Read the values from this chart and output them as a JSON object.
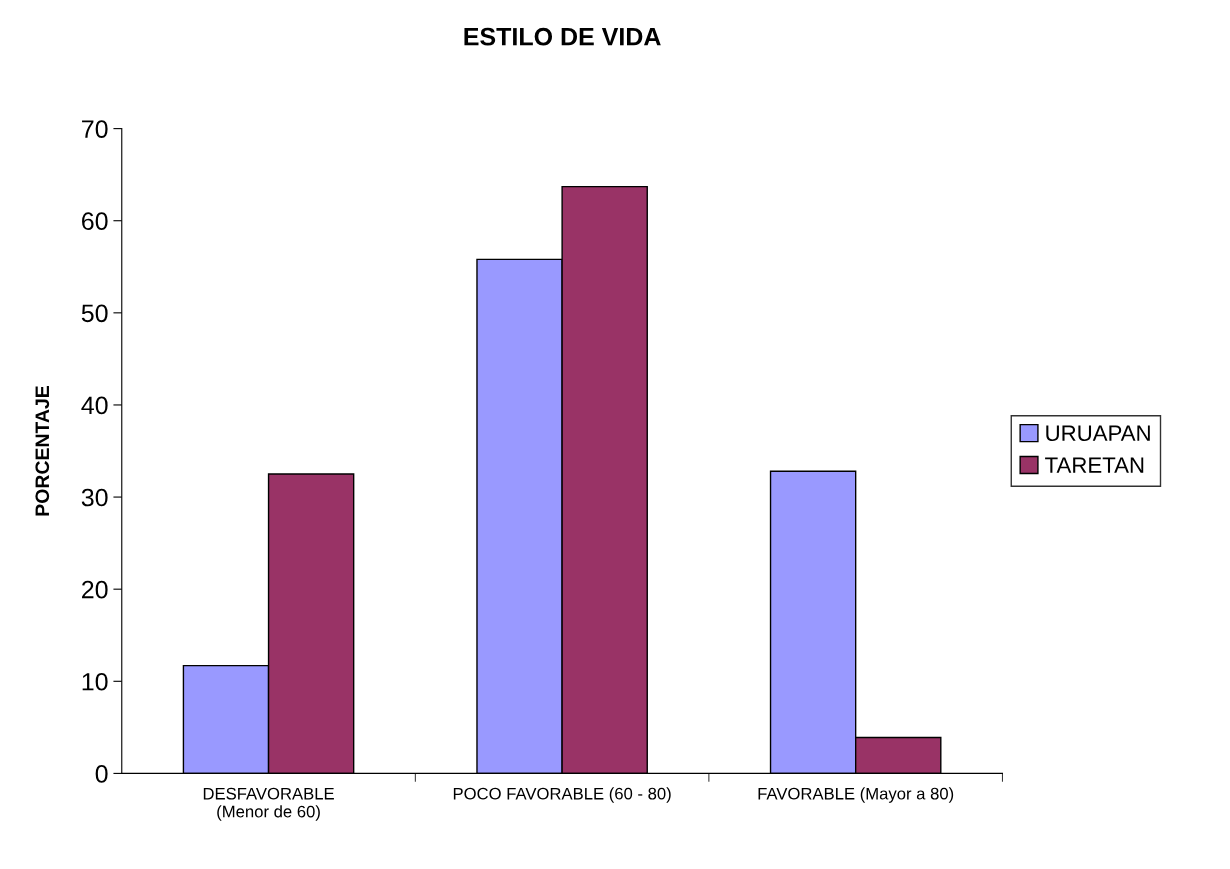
{
  "chart_data": {
    "type": "bar",
    "title": "ESTILO DE VIDA",
    "ylabel": "PORCENTAJE",
    "categories": [
      "DESFAVORABLE\n(Menor de 60)",
      "POCO FAVORABLE (60 - 80)",
      "FAVORABLE (Mayor a 80)"
    ],
    "series": [
      {
        "name": "URUAPAN",
        "color": "#9999ff",
        "values": [
          11.7,
          55.8,
          32.8
        ]
      },
      {
        "name": "TARETAN",
        "color": "#993366",
        "values": [
          32.5,
          63.7,
          3.9
        ]
      }
    ],
    "ylim": [
      0,
      70
    ],
    "yticks": [
      0,
      10,
      20,
      30,
      40,
      50,
      60,
      70
    ],
    "grid": false,
    "legend": "right"
  }
}
